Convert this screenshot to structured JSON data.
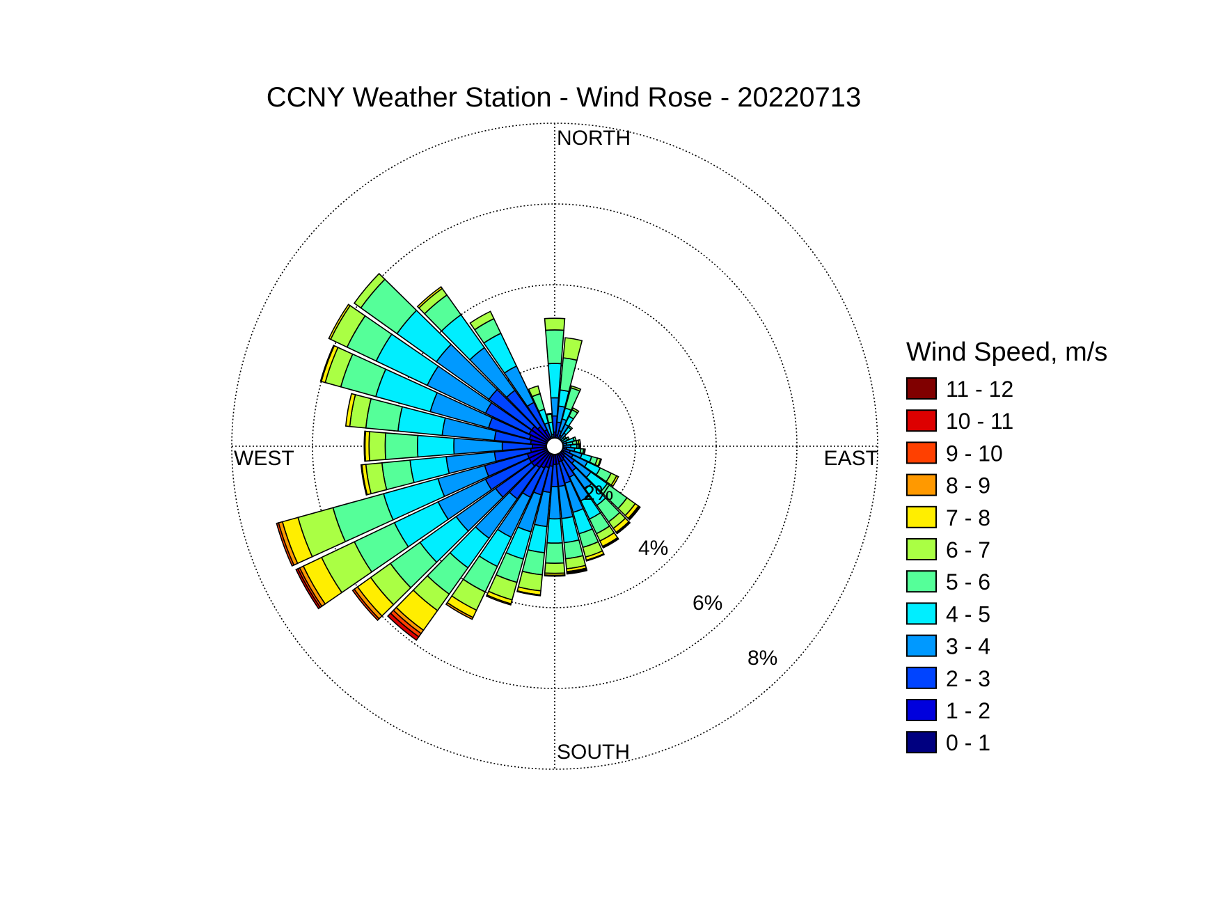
{
  "chart_data": {
    "type": "wind-rose",
    "title": "CCNY Weather Station - Wind Rose - 20220713",
    "direction_labels": {
      "north": "NORTH",
      "east": "EAST",
      "south": "SOUTH",
      "west": "WEST"
    },
    "radial_ticks": [
      2,
      4,
      6,
      8
    ],
    "radial_tick_labels": [
      "2%",
      "4%",
      "6%",
      "8%"
    ],
    "radial_max": 8,
    "legend": {
      "title": "Wind Speed, m/s",
      "placement": "right",
      "bins": [
        {
          "label": "11 - 12",
          "color": "#800000"
        },
        {
          "label": "10 - 11",
          "color": "#dd0000"
        },
        {
          "label": "9 - 10",
          "color": "#ff4000"
        },
        {
          "label": "8 - 9",
          "color": "#ff9900"
        },
        {
          "label": "7 - 8",
          "color": "#ffee00"
        },
        {
          "label": "6 - 7",
          "color": "#aaff44"
        },
        {
          "label": "5 - 6",
          "color": "#55ff99"
        },
        {
          "label": "4 - 5",
          "color": "#00eeff"
        },
        {
          "label": "3 - 4",
          "color": "#0099ff"
        },
        {
          "label": "2 - 3",
          "color": "#0044ff"
        },
        {
          "label": "1 - 2",
          "color": "#0000dd"
        },
        {
          "label": "0 - 1",
          "color": "#000080"
        }
      ]
    },
    "bin_order": [
      "0 - 1",
      "1 - 2",
      "2 - 3",
      "3 - 4",
      "4 - 5",
      "5 - 6",
      "6 - 7",
      "7 - 8",
      "8 - 9",
      "9 - 10",
      "10 - 11",
      "11 - 12"
    ],
    "bin_colors": [
      "#000080",
      "#0000dd",
      "#0044ff",
      "#0099ff",
      "#00eeff",
      "#55ff99",
      "#aaff44",
      "#ffee00",
      "#ff9900",
      "#ff4000",
      "#dd0000",
      "#800000"
    ],
    "directions_deg": [
      0,
      10,
      20,
      30,
      40,
      50,
      60,
      70,
      80,
      90,
      100,
      110,
      120,
      130,
      140,
      150,
      160,
      170,
      180,
      190,
      200,
      210,
      220,
      230,
      240,
      250,
      260,
      270,
      280,
      290,
      300,
      310,
      320,
      330,
      340,
      350
    ],
    "cumulative_percent": [
      [
        0.1,
        0.35,
        0.75,
        1.2,
        2.05,
        2.88,
        3.17
      ],
      [
        0.1,
        0.28,
        0.6,
        1.0,
        1.4,
        2.2,
        2.7
      ],
      [
        0.08,
        0.2,
        0.4,
        0.7,
        0.98,
        1.5,
        1.55
      ],
      [
        0.06,
        0.15,
        0.3,
        0.6,
        0.82,
        1.0,
        1.05
      ],
      [
        0.05,
        0.1,
        0.2,
        0.4,
        0.58,
        0.62
      ],
      [
        0.05,
        0.08,
        0.12,
        0.2,
        0.3,
        0.35
      ],
      [
        0.05,
        0.08,
        0.12,
        0.2,
        0.35,
        0.4
      ],
      [
        0.05,
        0.08,
        0.12,
        0.3,
        0.5,
        0.55
      ],
      [
        0.05,
        0.08,
        0.15,
        0.3,
        0.45,
        0.55,
        0.6,
        0.64
      ],
      [
        0.05,
        0.1,
        0.2,
        0.4,
        0.55,
        0.6,
        0.62,
        0.64
      ],
      [
        0.05,
        0.15,
        0.3,
        0.5,
        0.65,
        0.72,
        0.75,
        0.76
      ],
      [
        0.08,
        0.2,
        0.4,
        0.7,
        0.95,
        1.1,
        1.18,
        1.2
      ],
      [
        0.08,
        0.25,
        0.5,
        0.9,
        1.25,
        1.55,
        1.7,
        1.75
      ],
      [
        0.1,
        0.3,
        0.6,
        1.1,
        1.6,
        2.2,
        2.45,
        2.55,
        2.58,
        2.6
      ],
      [
        0.1,
        0.35,
        0.75,
        1.3,
        1.8,
        2.3,
        2.5,
        2.62,
        2.64,
        2.66
      ],
      [
        0.1,
        0.4,
        0.85,
        1.5,
        2.0,
        2.4,
        2.6,
        2.75,
        2.77,
        2.79
      ],
      [
        0.1,
        0.4,
        0.95,
        1.7,
        2.25,
        2.6,
        2.85,
        2.93,
        2.95
      ],
      [
        0.1,
        0.45,
        1.0,
        1.8,
        2.4,
        2.8,
        3.05,
        3.12,
        3.14,
        3.16,
        3.18
      ],
      [
        0.1,
        0.45,
        1.0,
        1.8,
        2.4,
        2.9,
        3.15,
        3.2,
        3.22
      ],
      [
        0.1,
        0.5,
        1.15,
        2.0,
        2.65,
        3.2,
        3.6,
        3.7,
        3.72
      ],
      [
        0.1,
        0.55,
        1.25,
        2.2,
        2.9,
        3.5,
        3.95,
        4.05,
        4.08
      ],
      [
        0.12,
        0.6,
        1.4,
        2.5,
        3.3,
        4.0,
        4.5,
        4.7,
        4.75
      ],
      [
        0.12,
        0.65,
        1.6,
        2.8,
        3.7,
        4.5,
        5.0,
        5.6,
        5.7,
        5.8,
        5.9
      ],
      [
        0.12,
        0.7,
        1.8,
        3.0,
        4.1,
        5.0,
        5.6,
        6.0,
        6.1,
        6.15
      ],
      [
        0.12,
        0.7,
        1.9,
        3.2,
        4.4,
        5.5,
        6.4,
        6.9,
        7.0,
        7.05,
        7.1
      ],
      [
        0.12,
        0.7,
        1.8,
        3.0,
        4.4,
        5.7,
        6.6,
        7.0,
        7.1,
        7.15
      ],
      [
        0.1,
        0.6,
        1.5,
        2.7,
        3.6,
        4.3,
        4.7,
        4.8,
        4.82
      ],
      [
        0.1,
        0.55,
        1.3,
        2.5,
        3.4,
        4.2,
        4.6,
        4.7,
        4.72
      ],
      [
        0.1,
        0.6,
        1.5,
        2.8,
        3.9,
        4.7,
        5.1,
        5.2
      ],
      [
        0.12,
        0.65,
        1.7,
        3.2,
        4.6,
        5.5,
        5.9,
        6.0,
        6.02
      ],
      [
        0.12,
        0.7,
        1.9,
        3.5,
        4.9,
        5.7,
        6.15,
        6.2
      ],
      [
        0.12,
        0.7,
        2.0,
        3.6,
        4.8,
        5.9,
        6.1
      ],
      [
        0.12,
        0.6,
        1.7,
        3.0,
        4.0,
        4.6,
        4.8,
        4.85
      ],
      [
        0.1,
        0.45,
        1.2,
        2.2,
        3.1,
        3.5,
        3.7
      ],
      [
        0.05,
        0.1,
        0.25,
        0.6,
        0.95,
        1.35,
        1.55
      ],
      [
        0.05,
        0.08,
        0.15,
        0.3,
        0.6,
        0.8,
        0.82
      ]
    ]
  }
}
